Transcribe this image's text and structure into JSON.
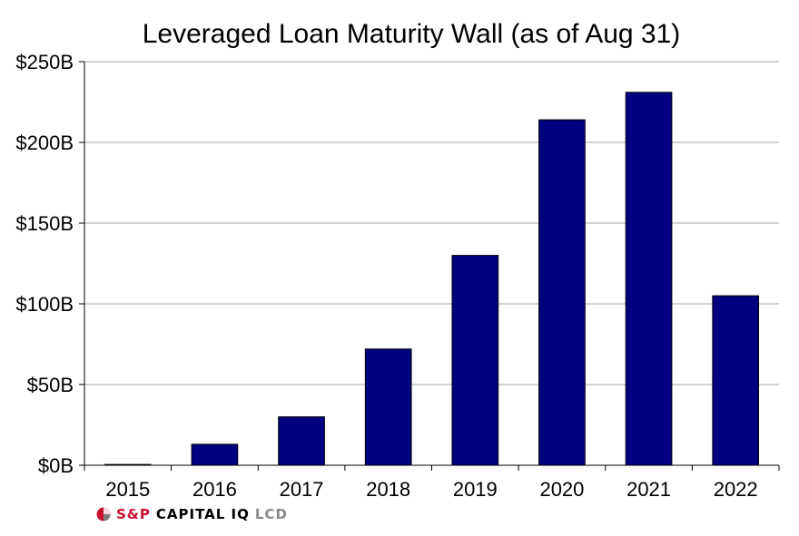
{
  "chart_data": {
    "type": "bar",
    "title": "Leveraged Loan Maturity Wall (as of Aug 31)",
    "categories": [
      "2015",
      "2016",
      "2017",
      "2018",
      "2019",
      "2020",
      "2021",
      "2022"
    ],
    "values": [
      0.5,
      13,
      30,
      72,
      130,
      214,
      231,
      105
    ],
    "ylim": [
      0,
      250
    ],
    "yticks": [
      0,
      50,
      100,
      150,
      200,
      250
    ],
    "ytick_labels": [
      "$0B",
      "$50B",
      "$100B",
      "$150B",
      "$200B",
      "$250B"
    ],
    "xlabel": "",
    "ylabel": "",
    "grid": true,
    "bar_color": "#000080",
    "grid_color": "#a6a6a6"
  },
  "logo": {
    "sp": "S&P",
    "capital": "CAPITAL IQ",
    "lcd": "LCD"
  }
}
